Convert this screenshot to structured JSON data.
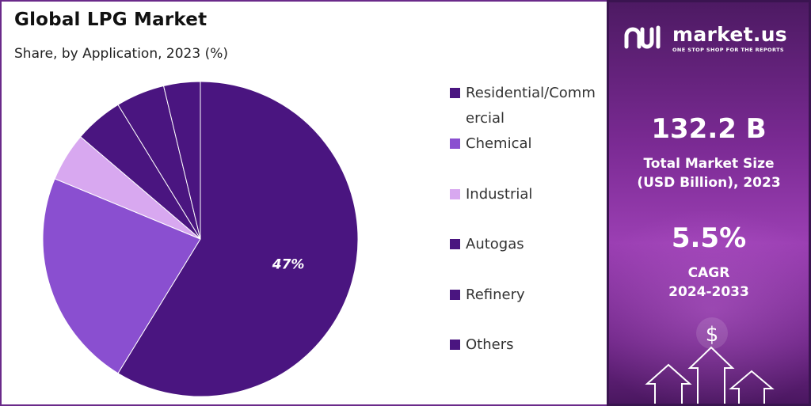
{
  "chart_data": {
    "type": "pie",
    "title": "Global LPG Market",
    "subtitle": "Share, by Application, 2023 (%)",
    "slices": [
      {
        "name": "Residential/Commercial",
        "value": 47,
        "color": "#4a1580",
        "label": "47%"
      },
      {
        "name": "Chemical",
        "value": 18,
        "color": "#8a4fd0",
        "label": ""
      },
      {
        "name": "Industrial",
        "value": 4,
        "color": "#d8a8f0",
        "label": ""
      },
      {
        "name": "Autogas",
        "value": 4,
        "color": "#4a1580",
        "label": ""
      },
      {
        "name": "Refinery",
        "value": 4,
        "color": "#4a1580",
        "label": ""
      },
      {
        "name": "Others",
        "value": 3,
        "color": "#4a1580",
        "label": ""
      }
    ],
    "legend_position": "right",
    "legend": [
      {
        "label": "Residential/Commercial",
        "color": "#4a1580"
      },
      {
        "label": "Chemical",
        "color": "#8a4fd0"
      },
      {
        "label": "Industrial",
        "color": "#d8a8f0"
      },
      {
        "label": "Autogas",
        "color": "#4a1580"
      },
      {
        "label": "Refinery",
        "color": "#4a1580"
      },
      {
        "label": "Others",
        "color": "#4a1580"
      }
    ]
  },
  "sidebar": {
    "brand_name": "market.us",
    "brand_tagline": "ONE STOP SHOP FOR THE REPORTS",
    "logo_icon": "marketus-logo-icon",
    "market_size_value": "132.2 B",
    "market_size_label_line1": "Total Market Size",
    "market_size_label_line2": "(USD Billion), 2023",
    "cagr_value": "5.5%",
    "cagr_label_line1": "CAGR",
    "cagr_label_line2": "2024-2033",
    "decor_icons": [
      "dollar-icon",
      "up-arrow-icon"
    ],
    "dollar_symbol": "$"
  }
}
